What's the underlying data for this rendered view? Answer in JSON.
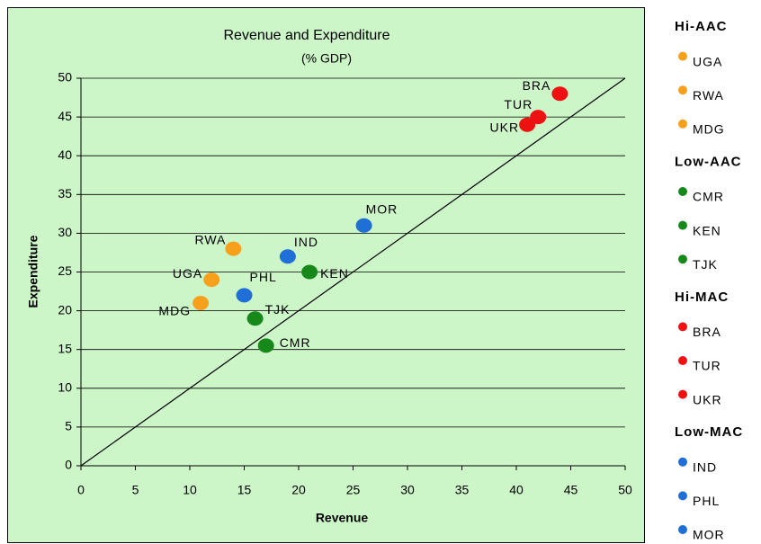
{
  "chart_data": {
    "type": "scatter",
    "title": "Revenue and Expenditure",
    "subtitle": "(% GDP)",
    "x_label": "Revenue",
    "y_label": "Expenditure",
    "xlim": [
      0,
      50
    ],
    "xticks": [
      0,
      5,
      10,
      15,
      20,
      25,
      30,
      35,
      40,
      45,
      50
    ],
    "ylim": [
      0,
      50
    ],
    "yticks": [
      0,
      5,
      10,
      15,
      20,
      25,
      30,
      35,
      40,
      45,
      50
    ],
    "grid": true,
    "series": [
      {
        "name": "Hi-AAC",
        "color": "#f7a01c",
        "labels": [
          "UGA",
          "RWA",
          "MDG"
        ],
        "x": [
          12,
          14,
          11
        ],
        "values": [
          24,
          28,
          21
        ]
      },
      {
        "name": "Low-AAC",
        "color": "#17891a",
        "labels": [
          "CMR",
          "KEN",
          "TJK"
        ],
        "x": [
          17,
          21,
          16
        ],
        "values": [
          15.5,
          25,
          19
        ]
      },
      {
        "name": "Hi-MAC",
        "color": "#ee1111",
        "labels": [
          "BRA",
          "TUR",
          "UKR"
        ],
        "x": [
          44,
          42,
          41
        ],
        "values": [
          48,
          45,
          44
        ]
      },
      {
        "name": "Low-MAC",
        "color": "#1f6fd6",
        "labels": [
          "IND",
          "PHL",
          "MOR"
        ],
        "x": [
          19,
          15,
          26
        ],
        "values": [
          27,
          22,
          31
        ]
      }
    ]
  }
}
